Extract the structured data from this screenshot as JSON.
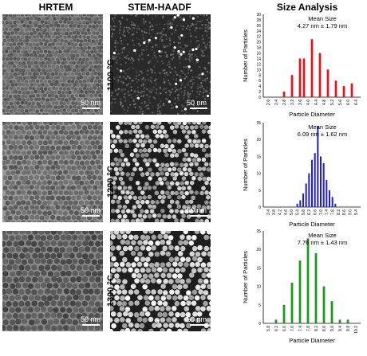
{
  "headers": {
    "hrtem": "HRTEM",
    "stem": "STEM-HAADF",
    "size": "Size Analysis"
  },
  "scale_bar_label": "50 nm",
  "rows": [
    {
      "temperature": "1100 °C"
    },
    {
      "temperature": "1200 °C"
    },
    {
      "temperature": "1300 °C"
    }
  ],
  "chart_data": [
    {
      "type": "bar",
      "color": "#e8141c",
      "annotation_title": "Mean Size",
      "annotation_value": "4.27 nm ± 1.79 nm",
      "xlabel": "Particle Diameter",
      "ylabel": "Number of Particles",
      "ylim": [
        0,
        30
      ],
      "yticks": [
        "0",
        "2",
        "4",
        "6",
        "8",
        "10",
        "12",
        "14",
        "16",
        "18",
        "20",
        "22",
        "24",
        "26",
        "28",
        "30"
      ],
      "categories": [
        "2.0",
        "2.4",
        "2.8",
        "3.2",
        "3.6",
        "4.0",
        "4.4",
        "4.8",
        "5.2",
        "5.6",
        "6.0",
        "6.4"
      ],
      "x": [
        2.0,
        2.2,
        2.4,
        2.6,
        2.8,
        3.0,
        3.2,
        3.4,
        3.6,
        3.8,
        4.0,
        4.2,
        4.4,
        4.6,
        4.8,
        5.0,
        5.2,
        5.4,
        5.6,
        5.8,
        6.0,
        6.2,
        6.4
      ],
      "values": [
        0,
        0,
        0,
        0,
        2,
        0,
        8,
        0,
        14,
        14,
        0,
        21,
        0,
        16,
        0,
        10,
        0,
        6,
        0,
        4,
        0,
        5,
        0
      ],
      "grid": false
    },
    {
      "type": "bar",
      "color": "#1f1fd6",
      "annotation_title": "Mean Size",
      "annotation_value": "6.09 nm ± 1.62 nm",
      "xlabel": "Particle Diameter",
      "ylabel": "Number of Particles",
      "ylim": [
        0,
        25
      ],
      "yticks": [
        "0",
        "5",
        "10",
        "15",
        "20",
        "25"
      ],
      "categories": [
        "3.4",
        "3.8",
        "4.2",
        "4.6",
        "5.0",
        "5.4",
        "5.8",
        "6.2",
        "6.6",
        "7.0",
        "7.4",
        "7.8",
        "8.2",
        "8.6",
        "9.0",
        "9.4"
      ],
      "x": [
        3.4,
        3.6,
        3.8,
        4.0,
        4.2,
        4.4,
        4.6,
        4.8,
        5.0,
        5.2,
        5.4,
        5.6,
        5.8,
        6.0,
        6.2,
        6.4,
        6.6,
        6.8,
        7.0,
        7.2,
        7.4,
        7.6,
        7.8,
        8.0,
        8.2,
        8.4,
        8.6,
        8.8,
        9.0,
        9.2,
        9.4
      ],
      "values": [
        0,
        0,
        0,
        0,
        0,
        0,
        0,
        0,
        0,
        0,
        1,
        2,
        4,
        7,
        10,
        14,
        16,
        24,
        15,
        13,
        8,
        5,
        3,
        1,
        0,
        0,
        0,
        0,
        0,
        0,
        0
      ],
      "grid": false
    },
    {
      "type": "bar",
      "color": "#1a9a1a",
      "annotation_title": "Mean Size",
      "annotation_value": "7.76 nm ± 1.43 nm",
      "xlabel": "Particle Diameter",
      "ylabel": "Number of Particles",
      "ylim": [
        0,
        25
      ],
      "yticks": [
        "0",
        "5",
        "10",
        "15",
        "20",
        "25"
      ],
      "categories": [
        "5.8",
        "6.2",
        "6.6",
        "7.0",
        "7.4",
        "7.8",
        "8.2",
        "8.6",
        "9.0",
        "9.4",
        "9.8",
        "10.2"
      ],
      "x": [
        5.8,
        6.0,
        6.2,
        6.4,
        6.6,
        6.8,
        7.0,
        7.2,
        7.4,
        7.6,
        7.8,
        8.0,
        8.2,
        8.4,
        8.6,
        8.8,
        9.0,
        9.2,
        9.4,
        9.6,
        9.8,
        10.0,
        10.2
      ],
      "values": [
        0,
        0,
        1,
        0,
        5,
        0,
        11,
        0,
        17,
        0,
        23,
        0,
        19,
        0,
        10,
        0,
        6,
        0,
        1,
        0,
        1,
        0,
        0
      ],
      "grid": false
    }
  ]
}
